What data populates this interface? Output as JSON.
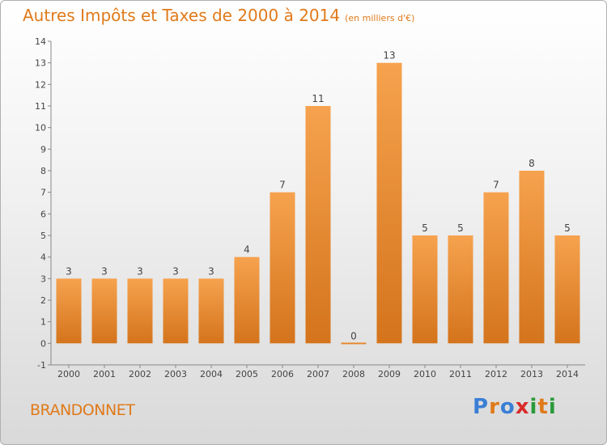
{
  "header": {
    "title": "Autres Impôts et Taxes de 2000 à 2014",
    "unit": "(en milliers d'€)"
  },
  "footer": {
    "commune": "BRANDONNET",
    "logo_text": "Proxiti",
    "logo_colors": [
      "#3a7fd5",
      "#e07a1a",
      "#3a7fd5",
      "#d92b2b",
      "#2a9a3a",
      "#e07a1a",
      "#2a9a3a"
    ]
  },
  "colors": {
    "bar_light": "#f6a24e",
    "bar_dark": "#d4741c",
    "axis": "#888888",
    "text": "#444444"
  },
  "chart_data": {
    "type": "bar",
    "categories": [
      "2000",
      "2001",
      "2002",
      "2003",
      "2004",
      "2005",
      "2006",
      "2007",
      "2008",
      "2009",
      "2010",
      "2011",
      "2012",
      "2013",
      "2014"
    ],
    "values": [
      3,
      3,
      3,
      3,
      3,
      4,
      7,
      11,
      0,
      13,
      5,
      5,
      7,
      8,
      5
    ],
    "ylim": [
      -1,
      14
    ],
    "yticks": [
      -1,
      0,
      1,
      2,
      3,
      4,
      5,
      6,
      7,
      8,
      9,
      10,
      11,
      12,
      13,
      14
    ],
    "grid": false,
    "legend": "none"
  }
}
